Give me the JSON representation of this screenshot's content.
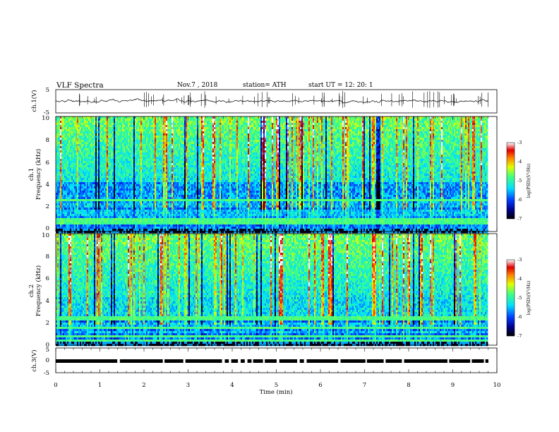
{
  "header": {
    "title": "VLF  Spectra",
    "date": "Nov.7  , 2018",
    "station": "station= ATH",
    "start": "start  UT  =     12: 20: 1"
  },
  "chart_data": [
    {
      "type": "line",
      "ylabel": "ch.1(V)",
      "ylim": [
        -5,
        5
      ],
      "yticks": [
        "5",
        "-5"
      ],
      "xlim": [
        0,
        10
      ],
      "series": [
        {
          "name": "",
          "values_description_free": true
        }
      ]
    },
    {
      "type": "heatmap",
      "ylabel_top": "ch.1",
      "ylabel": "Frequency  (kHz)",
      "ylim": [
        0,
        10
      ],
      "yticks": [
        "0",
        "2",
        "4",
        "6",
        "8",
        "10"
      ],
      "xlim": [
        0,
        10
      ],
      "colorbar": {
        "label": "log(PSD)(V²/Hz)",
        "ticks": [
          "-3",
          "-4",
          "-5",
          "-6",
          "-7"
        ],
        "range": [
          -7,
          -3
        ]
      }
    },
    {
      "type": "heatmap",
      "ylabel_top": "ch.2",
      "ylabel": "Frequency  (kHz)",
      "ylim": [
        0,
        10
      ],
      "yticks": [
        "0",
        "2",
        "4",
        "6",
        "8",
        "10"
      ],
      "xlim": [
        0,
        10
      ],
      "colorbar": {
        "label": "log(PSD)(V²/Hz)",
        "ticks": [
          "-3",
          "-4",
          "-5",
          "-6",
          "-7"
        ],
        "range": [
          -7,
          -3
        ]
      }
    },
    {
      "type": "line",
      "ylabel": "ch.3(V)",
      "ylim": [
        -5,
        5
      ],
      "yticks": [
        "5",
        "0",
        "-5"
      ],
      "xlim": [
        0,
        10
      ],
      "xticks": [
        "0",
        "1",
        "2",
        "3",
        "4",
        "5",
        "6",
        "7",
        "8",
        "9",
        "10"
      ],
      "xlabel": "Time  (min)"
    }
  ]
}
